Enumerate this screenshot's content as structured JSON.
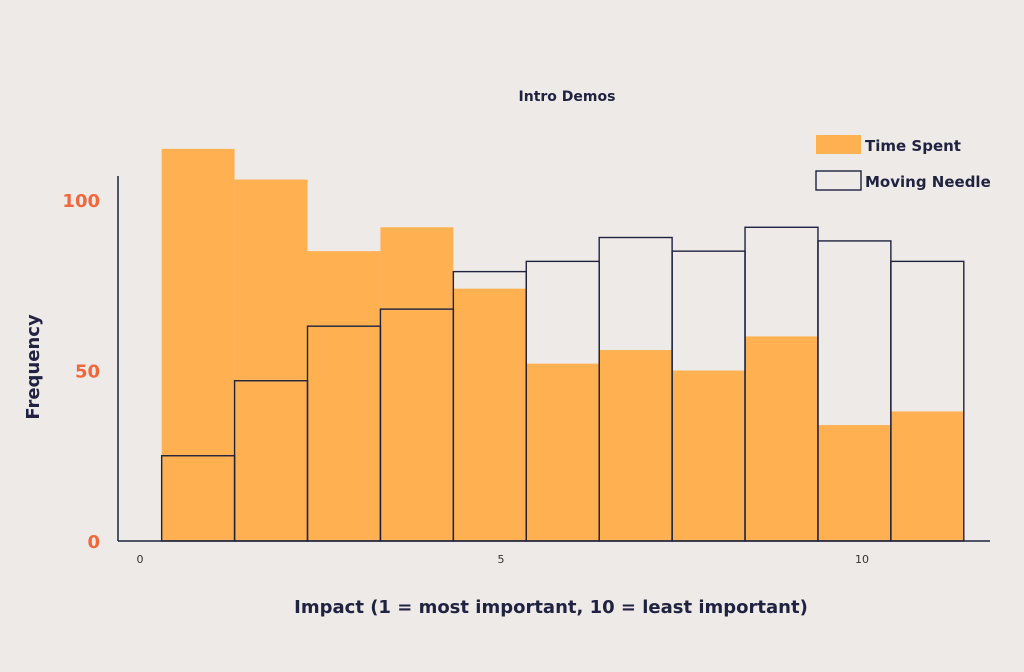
{
  "chart_data": {
    "type": "bar",
    "title": "Intro Demos",
    "xlabel": "Impact (1 = most important, 10 = least important)",
    "ylabel": "Frequency",
    "xlim": [
      0,
      11.8
    ],
    "ylim": [
      0,
      115
    ],
    "x_ticks": [
      0,
      5,
      10
    ],
    "y_ticks": [
      0,
      50,
      100
    ],
    "bin_edges": [
      0.3,
      1.31,
      2.32,
      3.33,
      4.34,
      5.35,
      6.36,
      7.37,
      8.38,
      9.39,
      10.4,
      11.41
    ],
    "grid": false,
    "legend_position": "top-right",
    "series": [
      {
        "name": "Time Spent",
        "style": "filled",
        "color": "#ffb050",
        "values": [
          115,
          106,
          85,
          92,
          74,
          52,
          56,
          50,
          60,
          34,
          38
        ]
      },
      {
        "name": "Moving Needle",
        "style": "outline",
        "color": "#1f2240",
        "values": [
          25,
          47,
          63,
          68,
          79,
          82,
          89,
          85,
          92,
          88,
          82
        ]
      }
    ]
  }
}
